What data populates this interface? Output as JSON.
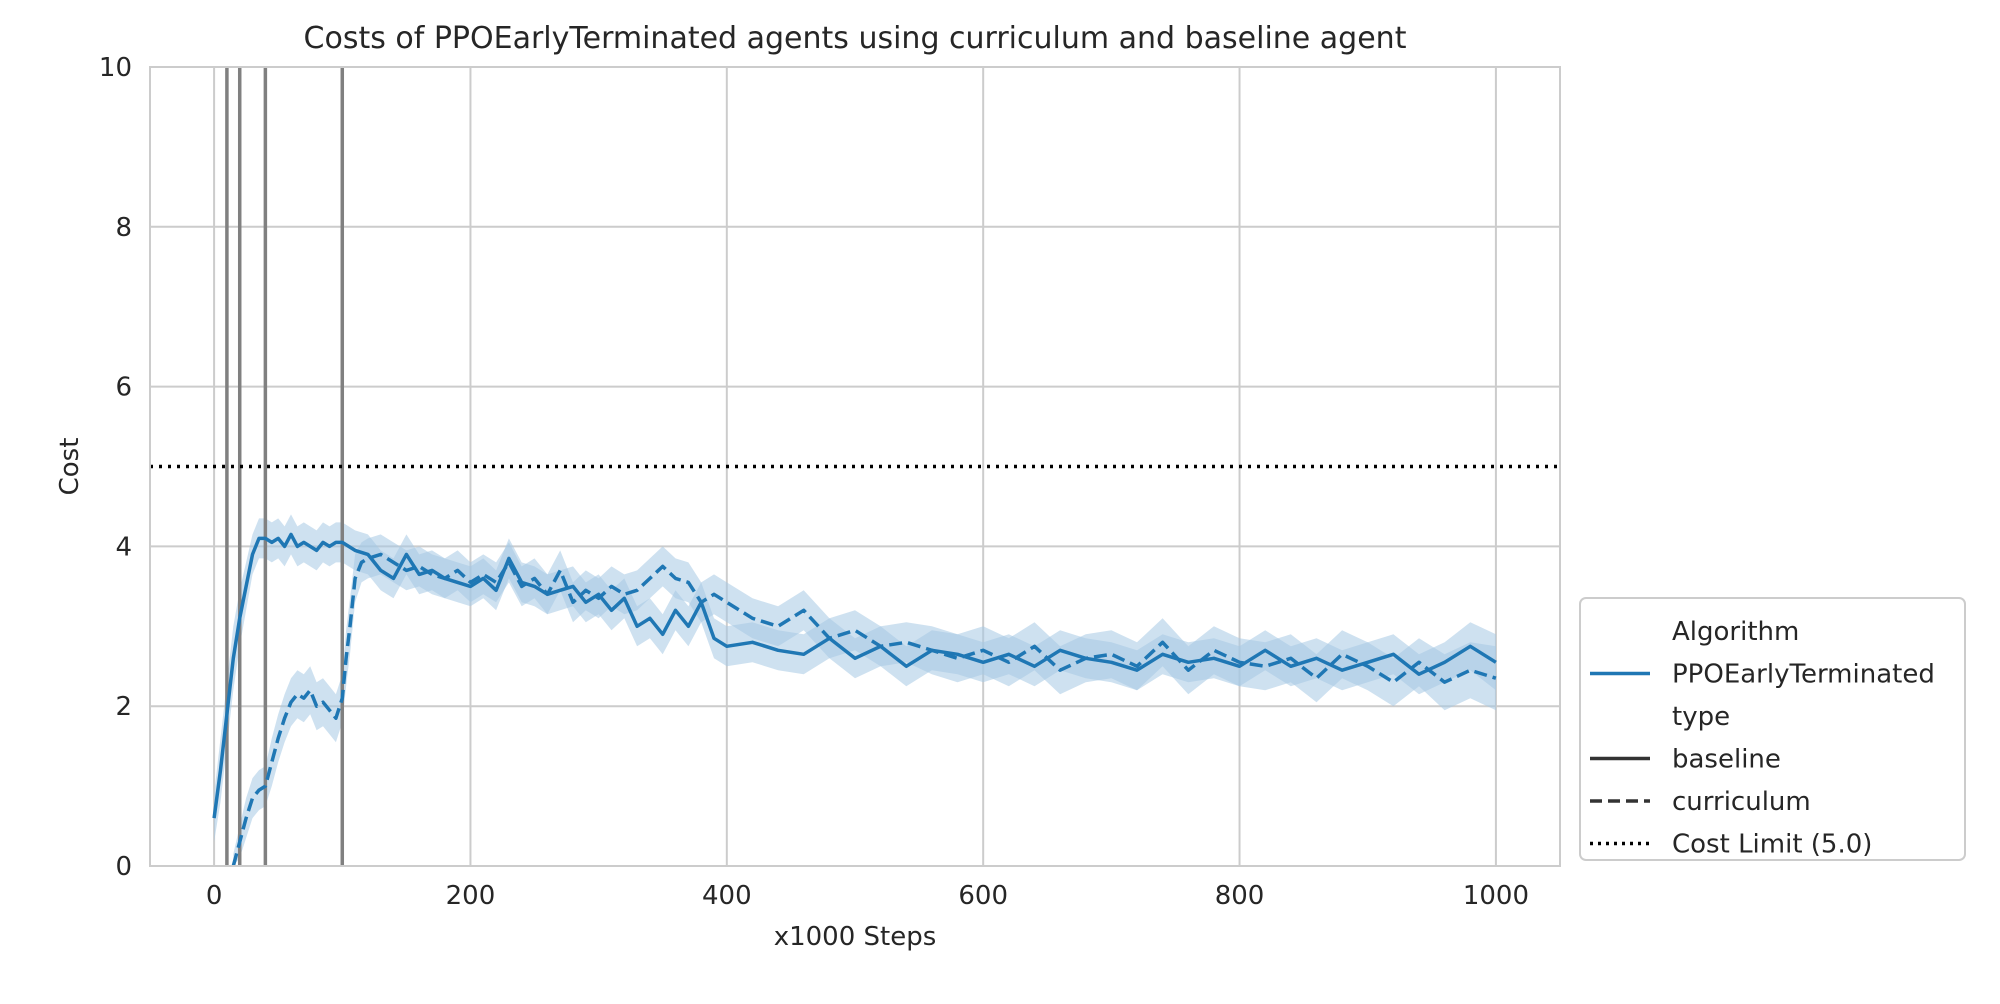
{
  "chart_data": {
    "type": "line",
    "title": "Costs of PPOEarlyTerminated agents using curriculum and baseline agent",
    "xlabel": "x1000 Steps",
    "ylabel": "Cost",
    "xlim": [
      -50,
      1050
    ],
    "ylim": [
      0,
      10
    ],
    "xticks": [
      0,
      200,
      400,
      600,
      800,
      1000
    ],
    "yticks": [
      0,
      2,
      4,
      6,
      8,
      10
    ],
    "grid": true,
    "legend_placement": "outside right, lower",
    "legend": {
      "title_algorithm": "Algorithm",
      "algorithm_entry": "PPOEarlyTerminated",
      "title_type": "type",
      "baseline_entry": "baseline",
      "curriculum_entry": "curriculum",
      "limit_entry": "Cost Limit (5.0)"
    },
    "cost_limit": 5.0,
    "curriculum_stage_changes": [
      10,
      20,
      40,
      100
    ],
    "colors": {
      "series": "#1f77b4",
      "band": "#a6c8e4",
      "grid": "#cccccc",
      "stage_line": "#808080",
      "limit_line": "#000000",
      "legend_line": "#333333"
    },
    "series": [
      {
        "name": "baseline",
        "style": "solid",
        "x": [
          0,
          5,
          10,
          15,
          20,
          25,
          30,
          35,
          40,
          45,
          50,
          55,
          60,
          65,
          70,
          75,
          80,
          85,
          90,
          95,
          100,
          110,
          120,
          130,
          140,
          150,
          160,
          170,
          180,
          190,
          200,
          210,
          220,
          230,
          240,
          250,
          260,
          270,
          280,
          290,
          300,
          310,
          320,
          330,
          340,
          350,
          360,
          370,
          380,
          390,
          400,
          420,
          440,
          460,
          480,
          500,
          520,
          540,
          560,
          580,
          600,
          620,
          640,
          660,
          680,
          700,
          720,
          740,
          760,
          780,
          800,
          820,
          840,
          860,
          880,
          900,
          920,
          940,
          960,
          980,
          1000
        ],
        "values": [
          0.6,
          1.2,
          1.9,
          2.6,
          3.1,
          3.5,
          3.9,
          4.1,
          4.1,
          4.05,
          4.1,
          4.0,
          4.15,
          4.0,
          4.05,
          4.0,
          3.95,
          4.05,
          4.0,
          4.05,
          4.05,
          3.95,
          3.9,
          3.7,
          3.6,
          3.9,
          3.65,
          3.7,
          3.6,
          3.55,
          3.5,
          3.6,
          3.45,
          3.85,
          3.55,
          3.5,
          3.4,
          3.45,
          3.5,
          3.3,
          3.4,
          3.2,
          3.35,
          3.0,
          3.1,
          2.9,
          3.2,
          3.0,
          3.3,
          2.85,
          2.75,
          2.8,
          2.7,
          2.65,
          2.85,
          2.6,
          2.75,
          2.5,
          2.7,
          2.65,
          2.55,
          2.65,
          2.5,
          2.7,
          2.6,
          2.55,
          2.45,
          2.65,
          2.55,
          2.6,
          2.5,
          2.7,
          2.5,
          2.6,
          2.45,
          2.55,
          2.65,
          2.4,
          2.55,
          2.75,
          2.55
        ],
        "band": [
          0.3,
          0.4,
          0.4,
          0.4,
          0.35,
          0.3,
          0.25,
          0.25,
          0.25,
          0.25,
          0.25,
          0.25,
          0.25,
          0.25,
          0.25,
          0.25,
          0.25,
          0.25,
          0.25,
          0.25,
          0.25,
          0.25,
          0.25,
          0.25,
          0.25,
          0.25,
          0.25,
          0.25,
          0.25,
          0.25,
          0.25,
          0.25,
          0.25,
          0.25,
          0.25,
          0.25,
          0.25,
          0.25,
          0.25,
          0.25,
          0.25,
          0.25,
          0.25,
          0.25,
          0.25,
          0.25,
          0.25,
          0.25,
          0.25,
          0.25,
          0.25,
          0.25,
          0.25,
          0.25,
          0.25,
          0.25,
          0.25,
          0.25,
          0.25,
          0.25,
          0.25,
          0.25,
          0.25,
          0.25,
          0.25,
          0.25,
          0.25,
          0.25,
          0.25,
          0.25,
          0.25,
          0.25,
          0.25,
          0.25,
          0.25,
          0.25,
          0.25,
          0.25,
          0.25,
          0.3,
          0.35
        ]
      },
      {
        "name": "curriculum",
        "style": "dashed",
        "x": [
          15,
          20,
          25,
          30,
          35,
          40,
          45,
          50,
          55,
          60,
          65,
          70,
          75,
          80,
          85,
          90,
          95,
          100,
          103,
          106,
          110,
          115,
          120,
          130,
          140,
          150,
          160,
          170,
          180,
          190,
          200,
          210,
          220,
          230,
          240,
          250,
          260,
          270,
          280,
          290,
          300,
          310,
          320,
          330,
          340,
          350,
          360,
          370,
          380,
          390,
          400,
          420,
          440,
          460,
          480,
          500,
          520,
          540,
          560,
          580,
          600,
          620,
          640,
          660,
          680,
          700,
          720,
          740,
          760,
          780,
          800,
          820,
          840,
          860,
          880,
          900,
          920,
          940,
          960,
          980,
          1000
        ],
        "values": [
          0.0,
          0.3,
          0.6,
          0.85,
          0.95,
          1.0,
          1.3,
          1.6,
          1.85,
          2.05,
          2.15,
          2.1,
          2.2,
          2.0,
          2.05,
          1.95,
          1.85,
          2.1,
          2.6,
          3.0,
          3.6,
          3.8,
          3.85,
          3.9,
          3.8,
          3.7,
          3.75,
          3.65,
          3.6,
          3.7,
          3.55,
          3.65,
          3.55,
          3.8,
          3.5,
          3.6,
          3.4,
          3.7,
          3.3,
          3.45,
          3.35,
          3.5,
          3.4,
          3.45,
          3.6,
          3.75,
          3.6,
          3.55,
          3.3,
          3.4,
          3.3,
          3.1,
          3.0,
          3.2,
          2.85,
          2.95,
          2.75,
          2.8,
          2.7,
          2.6,
          2.7,
          2.55,
          2.75,
          2.45,
          2.6,
          2.65,
          2.5,
          2.8,
          2.45,
          2.7,
          2.55,
          2.5,
          2.6,
          2.35,
          2.65,
          2.5,
          2.3,
          2.55,
          2.3,
          2.45,
          2.35
        ],
        "band": [
          0.15,
          0.2,
          0.25,
          0.25,
          0.25,
          0.25,
          0.3,
          0.3,
          0.3,
          0.3,
          0.3,
          0.3,
          0.3,
          0.3,
          0.3,
          0.3,
          0.3,
          0.3,
          0.35,
          0.35,
          0.3,
          0.25,
          0.25,
          0.25,
          0.25,
          0.25,
          0.25,
          0.25,
          0.25,
          0.25,
          0.25,
          0.25,
          0.25,
          0.25,
          0.25,
          0.25,
          0.25,
          0.25,
          0.25,
          0.25,
          0.25,
          0.25,
          0.25,
          0.25,
          0.25,
          0.25,
          0.25,
          0.25,
          0.25,
          0.25,
          0.25,
          0.25,
          0.25,
          0.25,
          0.25,
          0.25,
          0.25,
          0.25,
          0.3,
          0.3,
          0.3,
          0.3,
          0.3,
          0.3,
          0.3,
          0.3,
          0.3,
          0.3,
          0.3,
          0.3,
          0.3,
          0.3,
          0.3,
          0.3,
          0.3,
          0.3,
          0.3,
          0.3,
          0.35,
          0.35,
          0.4
        ]
      }
    ]
  }
}
